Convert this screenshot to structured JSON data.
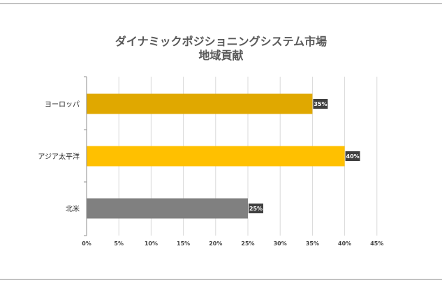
{
  "chart_data": {
    "type": "bar",
    "orientation": "horizontal",
    "title_lines": [
      "ダイナミックポジショニングシステム市場",
      "地域貢献"
    ],
    "categories": [
      "ヨーロッパ",
      "アジア太平洋",
      "北米"
    ],
    "values": [
      35,
      40,
      25
    ],
    "data_labels": [
      "35%",
      "40%",
      "25%"
    ],
    "bar_colors": [
      "#E0A800",
      "#FFC000",
      "#808080"
    ],
    "xlim": [
      0,
      45
    ],
    "xticks": [
      "0%",
      "5%",
      "10%",
      "15%",
      "20%",
      "25%",
      "30%",
      "35%",
      "40%",
      "45%"
    ],
    "grid": true,
    "legend": "none"
  }
}
